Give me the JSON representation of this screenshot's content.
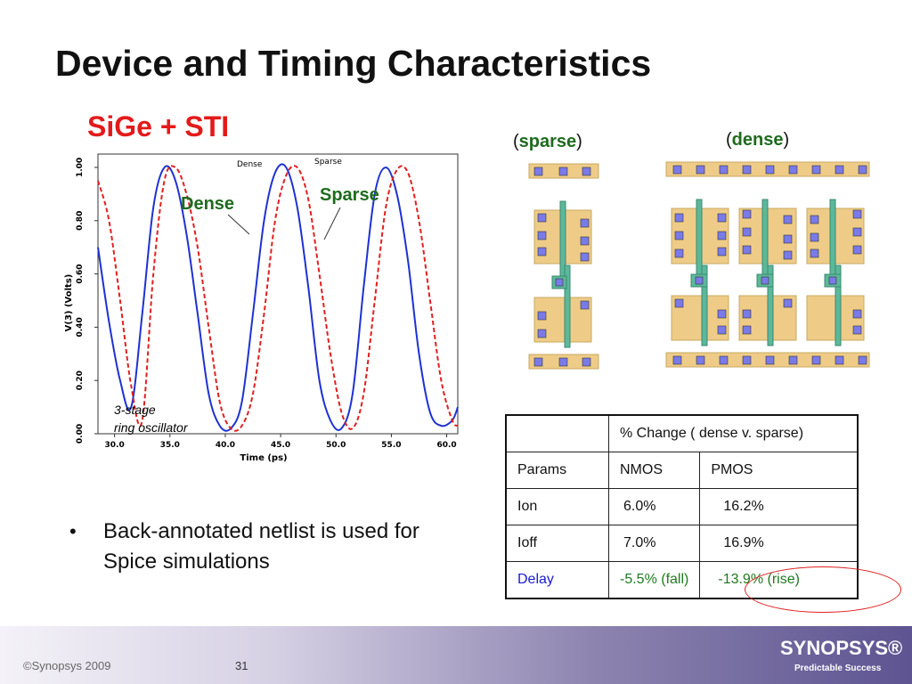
{
  "slide": {
    "title": "Device and Timing Characteristics",
    "subtitle": "SiGe + STI"
  },
  "chart_data": {
    "type": "line",
    "xlabel": "Time (ps)",
    "ylabel": "V(3) (Volts)",
    "xlim": [
      28.5,
      61.0
    ],
    "ylim": [
      0.0,
      1.05
    ],
    "x_ticks": [
      "30.0",
      "35.0",
      "40.0",
      "45.0",
      "50.0",
      "55.0",
      "60.0"
    ],
    "y_ticks": [
      "0.00",
      "0.20",
      "0.40",
      "0.60",
      "0.80",
      "1.00"
    ],
    "series": [
      {
        "name": "Dense",
        "color": "#1e32d2",
        "style": "solid",
        "points": [
          [
            28.5,
            0.7
          ],
          [
            29.5,
            0.42
          ],
          [
            30.5,
            0.2
          ],
          [
            31.5,
            0.1
          ],
          [
            32.5,
            0.45
          ],
          [
            33.5,
            0.85
          ],
          [
            34.5,
            1.0
          ],
          [
            35.5,
            0.95
          ],
          [
            36.5,
            0.75
          ],
          [
            37.5,
            0.45
          ],
          [
            38.5,
            0.15
          ],
          [
            39.5,
            0.03
          ],
          [
            40.5,
            0.02
          ],
          [
            41.5,
            0.12
          ],
          [
            42.5,
            0.45
          ],
          [
            43.5,
            0.8
          ],
          [
            44.5,
            0.98
          ],
          [
            45.5,
            1.0
          ],
          [
            46.5,
            0.85
          ],
          [
            47.5,
            0.55
          ],
          [
            48.5,
            0.2
          ],
          [
            49.5,
            0.05
          ],
          [
            50.5,
            0.02
          ],
          [
            51.5,
            0.15
          ],
          [
            52.5,
            0.55
          ],
          [
            53.5,
            0.9
          ],
          [
            54.5,
            1.0
          ],
          [
            55.5,
            0.9
          ],
          [
            56.5,
            0.65
          ],
          [
            57.5,
            0.3
          ],
          [
            58.5,
            0.08
          ],
          [
            59.5,
            0.03
          ],
          [
            60.5,
            0.05
          ],
          [
            61.0,
            0.1
          ]
        ]
      },
      {
        "name": "Sparse",
        "color": "#e02020",
        "style": "dashed",
        "points": [
          [
            28.5,
            0.95
          ],
          [
            29.5,
            0.8
          ],
          [
            30.5,
            0.5
          ],
          [
            31.5,
            0.18
          ],
          [
            32.5,
            0.05
          ],
          [
            33.5,
            0.6
          ],
          [
            34.5,
            0.95
          ],
          [
            35.5,
            1.0
          ],
          [
            36.5,
            0.9
          ],
          [
            37.5,
            0.7
          ],
          [
            38.5,
            0.4
          ],
          [
            39.5,
            0.12
          ],
          [
            40.5,
            0.02
          ],
          [
            41.5,
            0.03
          ],
          [
            42.5,
            0.15
          ],
          [
            43.5,
            0.45
          ],
          [
            44.5,
            0.8
          ],
          [
            45.5,
            0.97
          ],
          [
            46.5,
            1.0
          ],
          [
            47.5,
            0.88
          ],
          [
            48.5,
            0.6
          ],
          [
            49.5,
            0.3
          ],
          [
            50.5,
            0.08
          ],
          [
            51.5,
            0.02
          ],
          [
            52.5,
            0.15
          ],
          [
            53.5,
            0.5
          ],
          [
            54.5,
            0.85
          ],
          [
            55.5,
            0.99
          ],
          [
            56.5,
            0.98
          ],
          [
            57.5,
            0.8
          ],
          [
            58.5,
            0.5
          ],
          [
            59.5,
            0.2
          ],
          [
            60.5,
            0.05
          ],
          [
            61.0,
            0.03
          ]
        ]
      }
    ],
    "annotations": {
      "dense_small": "Dense",
      "sparse_small": "Sparse",
      "dense_large": "Dense",
      "sparse_large": "Sparse",
      "osc_line1": "3-stage",
      "osc_line2": "ring oscillator"
    }
  },
  "layouts": {
    "sparse_open": "(",
    "sparse_word": "sparse",
    "sparse_close": ")",
    "dense_open": "(",
    "dense_word": "dense",
    "dense_close": ")"
  },
  "table": {
    "header": "% Change ( dense v. sparse)",
    "rows": [
      {
        "param": "Params",
        "nmos": "NMOS",
        "pmos": "PMOS"
      },
      {
        "param": "Ion",
        "nmos": "6.0%",
        "pmos": "16.2%"
      },
      {
        "param": "Ioff",
        "nmos": "7.0%",
        "pmos": "16.9%"
      },
      {
        "param": "Delay",
        "nmos": "-5.5% (fall)",
        "pmos": "-13.9% (rise)"
      }
    ]
  },
  "bullet": {
    "dot": "•",
    "text": "Back-annotated netlist is used for Spice simulations"
  },
  "footer": {
    "copyright": "©Synopsys 2009",
    "page_number": "31",
    "logo": "SYNOPSYS®",
    "tagline": "Predictable Success"
  },
  "colors": {
    "title_red": "#e41a1a",
    "label_green": "#1e6b1e",
    "diffusion": "#eecc88",
    "gate": "#5cb89a",
    "contact": "#7a7ae8",
    "delay_blue": "#1a1ad0"
  }
}
